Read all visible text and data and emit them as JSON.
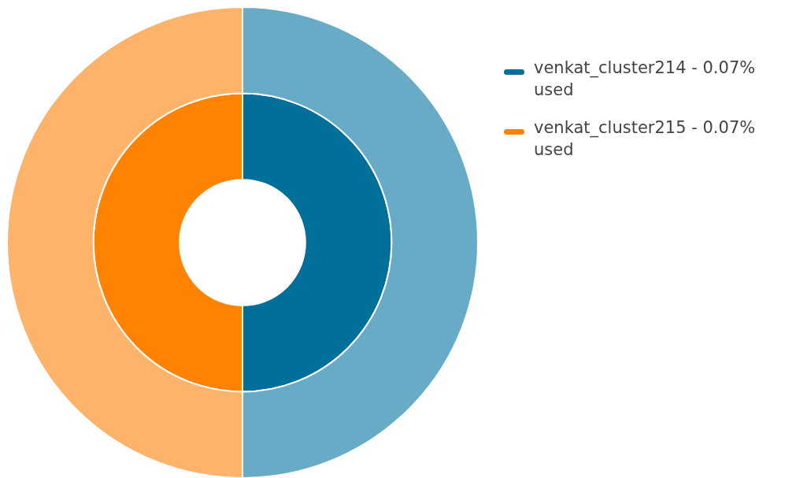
{
  "chart_data": {
    "type": "donut",
    "categories": [
      "venkat_cluster214 - 0.07% used",
      "venkat_cluster215 - 0.07% used"
    ],
    "series": [
      {
        "values": [
          50,
          50
        ],
        "colors": [
          "#67abc6",
          "#fdb46a"
        ]
      },
      {
        "values": [
          50,
          50
        ],
        "colors": [
          "#006f9a",
          "#ff8300"
        ]
      }
    ],
    "legend": "top right"
  }
}
